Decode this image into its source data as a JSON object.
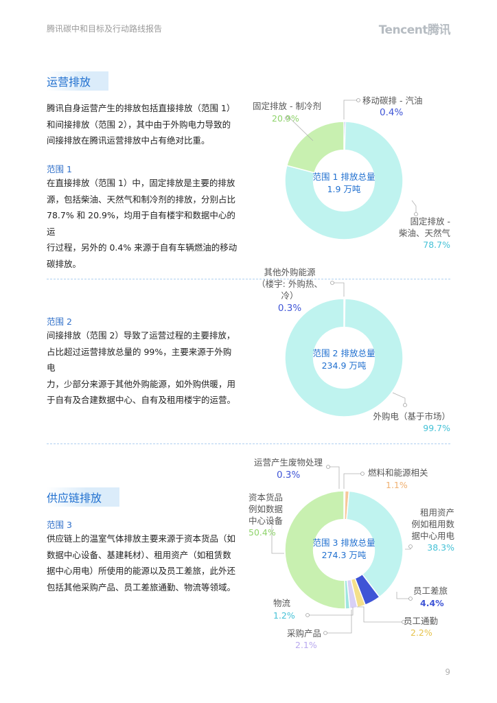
{
  "header": {
    "title": "腾讯碳中和目标及行动路线报告",
    "logo": "Tencent腾讯"
  },
  "section1": {
    "title": "运营排放",
    "intro": [
      "腾讯自身运营产生的排放包括直接排放（范围 1）",
      "和间接排放（范围 2），其中由于外购电力导致的",
      "间接排放在腾讯运营排放中占有绝对比重。"
    ],
    "scope1": {
      "title": "范围 1",
      "lines": [
        "在直接排放（范围 1）中，固定排放是主要的排放",
        "源，包括柴油、天然气和制冷剂的排放，分别占比",
        "78.7% 和 20.9%，均用于自有楼宇和数据中心的运",
        "行过程，另外的 0.4% 来源于自有车辆燃油的移动",
        "碳排放。"
      ]
    },
    "scope2": {
      "title": "范围 2",
      "lines": [
        "间接排放（范围 2）导致了运营过程的主要排放，",
        "占比超过运营排放总量的 99%，主要来源于外购电",
        "力，少部分来源于其他外购能源，如外购供暖，用",
        "于自有及合建数据中心、自有及租用楼宇的运营。"
      ]
    }
  },
  "section2": {
    "title": "供应链排放",
    "scope3": {
      "title": "范围 3",
      "lines": [
        "供应链上的温室气体排放主要来源于资本货品（如",
        "数据中心设备、基建耗材）、租用资产（如租赁数",
        "据中心用电）所使用的能源以及员工差旅，此外还",
        "包括其他采购产品、员工差旅通勤、物流等领域。"
      ]
    }
  },
  "chart_data": [
    {
      "type": "pie",
      "center_label": [
        "范围 1 排放总量",
        "1.9 万吨"
      ],
      "slices": [
        {
          "label": [
            "移动碳排 - 汽油"
          ],
          "value": 0.4,
          "value_label": "0.4%",
          "color": "#4b55d6"
        },
        {
          "label": [
            "固定排放 -",
            "柴油、天然气"
          ],
          "value": 78.7,
          "value_label": "78.7%",
          "color": "#bff3ef"
        },
        {
          "label": [
            "固定排放 - 制冷剂"
          ],
          "value": 20.9,
          "value_label": "20.9%",
          "color": "#c8f0b0"
        }
      ]
    },
    {
      "type": "pie",
      "center_label": [
        "范围 2 排放总量",
        "234.9 万吨"
      ],
      "slices": [
        {
          "label": [
            "其他外购能源",
            "（楼宇: 外购热、冷）"
          ],
          "value": 0.3,
          "value_label": "0.3%",
          "color": "#4b55d6"
        },
        {
          "label": [
            "外购电（基于市场）"
          ],
          "value": 99.7,
          "value_label": "99.7%",
          "color": "#bff3ef"
        }
      ]
    },
    {
      "type": "pie",
      "center_label": [
        "范围 3 排放总量",
        "274.3 万吨"
      ],
      "slices": [
        {
          "label": [
            "运营产生废物处理"
          ],
          "value": 0.3,
          "value_label": "0.3%",
          "color": "#4b55d6"
        },
        {
          "label": [
            "燃料和能源相关"
          ],
          "value": 1.1,
          "value_label": "1.1%",
          "color": "#f6c89a"
        },
        {
          "label": [
            "租用资产",
            "例如租用数",
            "据中心用电"
          ],
          "value": 38.3,
          "value_label": "38.3%",
          "color": "#bff3ef"
        },
        {
          "label": [
            "员工差旅"
          ],
          "value": 4.4,
          "value_label": "4.4%",
          "color": "#3f55d6"
        },
        {
          "label": [
            "员工通勤"
          ],
          "value": 2.2,
          "value_label": "2.2%",
          "color": "#f4e08a"
        },
        {
          "label": [
            "采购产品"
          ],
          "value": 2.1,
          "value_label": "2.1%",
          "color": "#d8d0f6"
        },
        {
          "label": [
            "物流"
          ],
          "value": 1.2,
          "value_label": "1.2%",
          "color": "#9fe6e0"
        },
        {
          "label": [
            "资本货品",
            "例如数据",
            "中心设备"
          ],
          "value": 50.4,
          "value_label": "50.4%",
          "color": "#c8f0b0"
        }
      ]
    }
  ],
  "page_number": "9"
}
